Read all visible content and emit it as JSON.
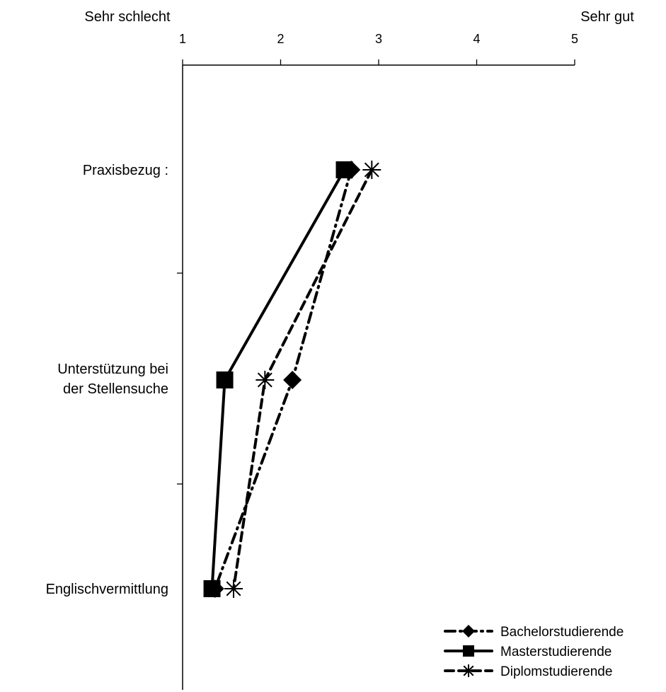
{
  "chart_data": {
    "type": "line",
    "orientation": "horizontal-values",
    "x_min_label": "Sehr schlecht",
    "x_max_label": "Sehr gut",
    "x_ticks": [
      1,
      2,
      3,
      4,
      5
    ],
    "xlim": [
      1,
      5
    ],
    "categories": [
      "Praxisbezug :",
      "Unterstützung bei\nder Stellensuche",
      "Englischvermittlung"
    ],
    "series": [
      {
        "name": "Bachelorstudierende",
        "marker": "diamond",
        "line_style": "dashdot",
        "values": [
          2.72,
          2.12,
          1.33
        ]
      },
      {
        "name": "Masterstudierende",
        "marker": "square",
        "line_style": "solid",
        "values": [
          2.65,
          1.43,
          1.3
        ]
      },
      {
        "name": "Diplomstudierende",
        "marker": "asterisk",
        "line_style": "dashed",
        "values": [
          2.93,
          1.84,
          1.52
        ]
      }
    ],
    "grid": false,
    "legend_position": "bottom-right"
  }
}
